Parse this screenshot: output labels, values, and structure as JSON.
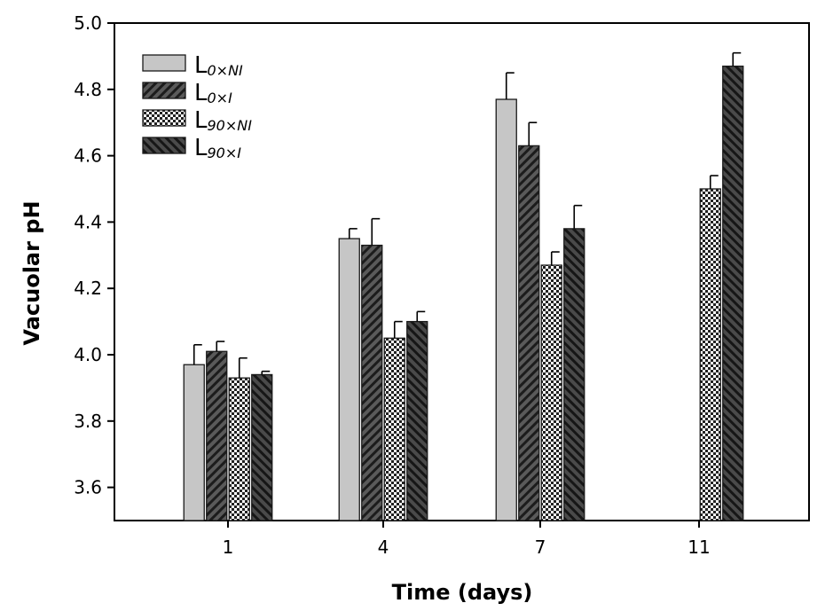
{
  "chart_data": {
    "type": "bar",
    "title": "",
    "xlabel": "Time (days)",
    "ylabel": "Vacuolar pH",
    "ylim": [
      3.5,
      5.0
    ],
    "yticks": [
      3.6,
      3.8,
      4.0,
      4.2,
      4.4,
      4.6,
      4.8,
      5.0
    ],
    "ytick_labels": [
      "3.6",
      "3.8",
      "4.0",
      "4.2",
      "4.4",
      "4.6",
      "4.8",
      "5.0"
    ],
    "categories": [
      "1",
      "4",
      "7",
      "11"
    ],
    "legend_position": "top-left",
    "series": [
      {
        "name": "L0×NI",
        "base": "L",
        "sub": "0×NI",
        "pattern": "light-gray",
        "values": [
          3.97,
          4.35,
          4.77,
          null
        ],
        "errors": [
          0.06,
          0.03,
          0.08,
          null
        ]
      },
      {
        "name": "L0×I",
        "base": "L",
        "sub": "0×I",
        "pattern": "diagonal-stripes",
        "values": [
          4.01,
          4.33,
          4.63,
          null
        ],
        "errors": [
          0.03,
          0.08,
          0.07,
          null
        ]
      },
      {
        "name": "L90×NI",
        "base": "L",
        "sub": "90×NI",
        "pattern": "crosshatch",
        "values": [
          3.93,
          4.05,
          4.27,
          4.5
        ],
        "errors": [
          0.06,
          0.05,
          0.04,
          0.04
        ]
      },
      {
        "name": "L90×I",
        "base": "L",
        "sub": "90×I",
        "pattern": "dark-diagonal-stripes",
        "values": [
          3.94,
          4.1,
          4.38,
          4.87
        ],
        "errors": [
          0.01,
          0.03,
          0.07,
          0.04
        ]
      }
    ],
    "colors": {
      "light": "#c6c6c6",
      "dark": "#555555",
      "stripe": "#1a1a1a",
      "axis": "#000000"
    }
  }
}
